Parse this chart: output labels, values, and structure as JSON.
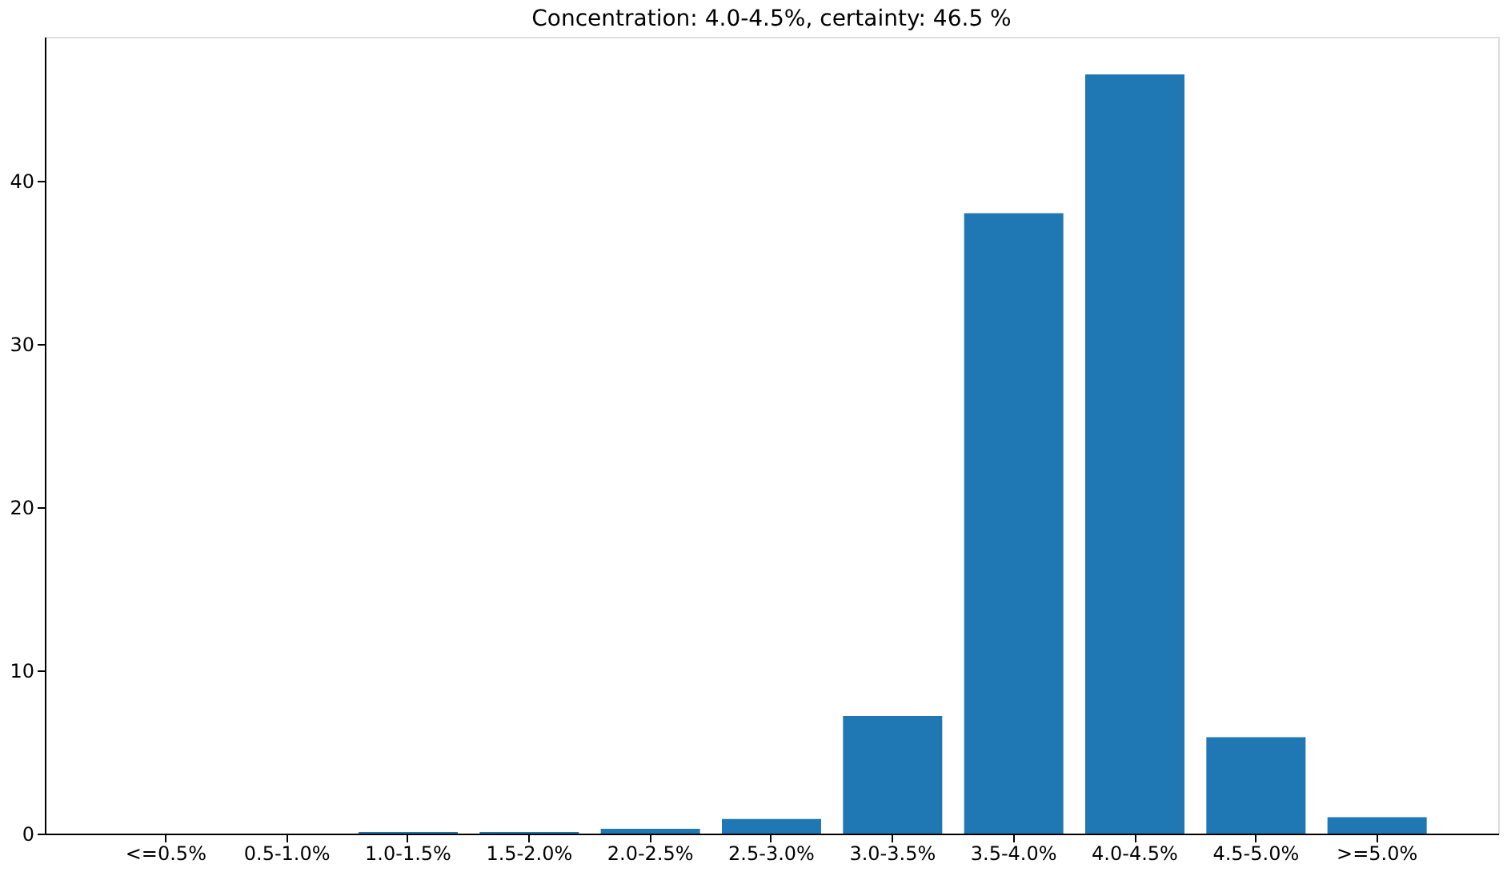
{
  "chart_data": {
    "type": "bar",
    "title": "Concentration: 4.0-4.5%, certainty: 46.5 %",
    "categories": [
      "<=0.5%",
      "0.5-1.0%",
      "1.0-1.5%",
      "1.5-2.0%",
      "2.0-2.5%",
      "2.5-3.0%",
      "3.0-3.5%",
      "3.5-4.0%",
      "4.0-4.5%",
      "4.5-5.0%",
      ">=5.0%"
    ],
    "values": [
      0,
      0,
      0.1,
      0.1,
      0.3,
      0.9,
      7.2,
      38.0,
      46.5,
      5.9,
      1.0
    ],
    "color": "#1f77b4",
    "ylim": [
      0,
      48.8
    ],
    "yticks": [
      0,
      10,
      20,
      30,
      40
    ],
    "grid": false
  }
}
